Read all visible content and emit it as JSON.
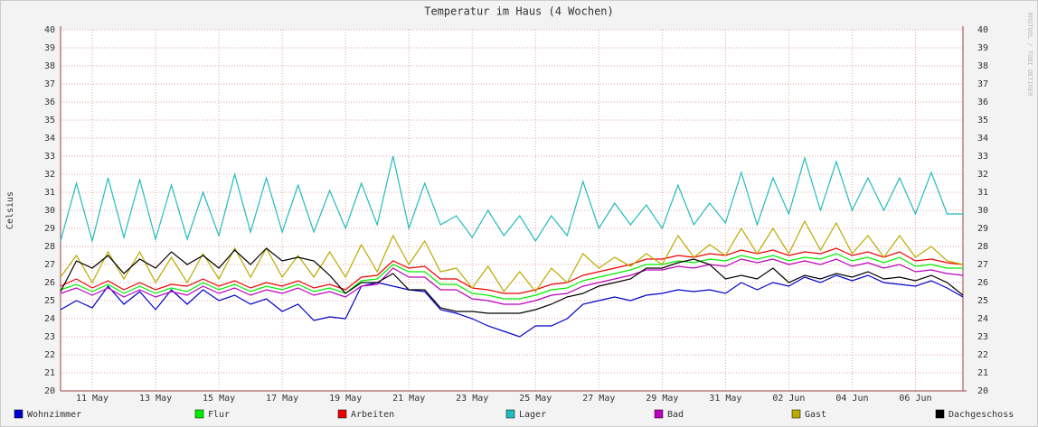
{
  "chart_data": {
    "type": "line",
    "title": "Temperatur im Haus (4 Wochen)",
    "y_label": "Celsius",
    "watermark": "RRDTOOL / TOBI OETIKER",
    "grid": true,
    "xlim": [
      0,
      28.5
    ],
    "ylim": [
      20,
      40
    ],
    "xticks": [
      {
        "value": 1,
        "label": "11 May"
      },
      {
        "value": 3,
        "label": "13 May"
      },
      {
        "value": 5,
        "label": "15 May"
      },
      {
        "value": 7,
        "label": "17 May"
      },
      {
        "value": 9,
        "label": "19 May"
      },
      {
        "value": 11,
        "label": "21 May"
      },
      {
        "value": 13,
        "label": "23 May"
      },
      {
        "value": 15,
        "label": "25 May"
      },
      {
        "value": 17,
        "label": "27 May"
      },
      {
        "value": 19,
        "label": "29 May"
      },
      {
        "value": 21,
        "label": "31 May"
      },
      {
        "value": 23,
        "label": "02 Jun"
      },
      {
        "value": 25,
        "label": "04 Jun"
      },
      {
        "value": 27,
        "label": "06 Jun"
      }
    ],
    "yticks": [
      20,
      21,
      22,
      23,
      24,
      25,
      26,
      27,
      28,
      29,
      30,
      31,
      32,
      33,
      34,
      35,
      36,
      37,
      38,
      39,
      40
    ],
    "x": [
      0,
      0.5,
      1,
      1.5,
      2,
      2.5,
      3,
      3.5,
      4,
      4.5,
      5,
      5.5,
      6,
      6.5,
      7,
      7.5,
      8,
      8.5,
      9,
      9.5,
      10,
      10.5,
      11,
      11.5,
      12,
      12.5,
      13,
      13.5,
      14,
      14.5,
      15,
      15.5,
      16,
      16.5,
      17,
      17.5,
      18,
      18.5,
      19,
      19.5,
      20,
      20.5,
      21,
      21.5,
      22,
      22.5,
      23,
      23.5,
      24,
      24.5,
      25,
      25.5,
      26,
      26.5,
      27,
      27.5,
      28,
      28.5
    ],
    "series": [
      {
        "name": "Wohnzimmer",
        "color": "#0000cc",
        "values": [
          24.5,
          25.0,
          24.6,
          25.8,
          24.8,
          25.5,
          24.5,
          25.6,
          24.8,
          25.6,
          25.0,
          25.3,
          24.8,
          25.1,
          24.4,
          24.8,
          23.9,
          24.1,
          24.0,
          25.8,
          26.0,
          25.8,
          25.6,
          25.5,
          24.5,
          24.3,
          24.0,
          23.6,
          23.3,
          23.0,
          23.6,
          23.6,
          24.0,
          24.8,
          25.0,
          25.2,
          25.0,
          25.3,
          25.4,
          25.6,
          25.5,
          25.6,
          25.4,
          26.0,
          25.6,
          26.0,
          25.8,
          26.3,
          26.0,
          26.4,
          26.1,
          26.4,
          26.0,
          25.9,
          25.8,
          26.1,
          25.7,
          25.2
        ]
      },
      {
        "name": "Flur",
        "color": "#00ee00",
        "values": [
          25.6,
          25.9,
          25.5,
          25.9,
          25.4,
          25.8,
          25.4,
          25.7,
          25.5,
          26.0,
          25.6,
          25.9,
          25.5,
          25.8,
          25.6,
          25.9,
          25.5,
          25.7,
          25.4,
          26.1,
          26.2,
          27.0,
          26.6,
          26.6,
          25.9,
          25.9,
          25.4,
          25.3,
          25.1,
          25.1,
          25.3,
          25.6,
          25.7,
          26.1,
          26.3,
          26.5,
          26.7,
          27.0,
          27.0,
          27.2,
          27.1,
          27.3,
          27.2,
          27.5,
          27.3,
          27.5,
          27.2,
          27.4,
          27.3,
          27.6,
          27.2,
          27.4,
          27.1,
          27.4,
          26.9,
          27.0,
          26.8,
          26.8
        ]
      },
      {
        "name": "Arbeiten",
        "color": "#ee0000",
        "values": [
          25.8,
          26.2,
          25.7,
          26.1,
          25.6,
          26.0,
          25.6,
          25.9,
          25.8,
          26.2,
          25.8,
          26.1,
          25.7,
          26.0,
          25.8,
          26.1,
          25.7,
          25.9,
          25.6,
          26.3,
          26.4,
          27.2,
          26.8,
          26.9,
          26.2,
          26.2,
          25.7,
          25.6,
          25.4,
          25.4,
          25.6,
          25.9,
          26.0,
          26.4,
          26.6,
          26.8,
          27.0,
          27.3,
          27.3,
          27.5,
          27.4,
          27.6,
          27.5,
          27.8,
          27.6,
          27.8,
          27.5,
          27.7,
          27.6,
          27.9,
          27.5,
          27.7,
          27.4,
          27.7,
          27.2,
          27.3,
          27.1,
          27.0
        ]
      },
      {
        "name": "Lager",
        "color": "#22bbbb",
        "values": [
          28.3,
          31.5,
          28.3,
          31.8,
          28.5,
          31.7,
          28.4,
          31.4,
          28.4,
          31.0,
          28.6,
          32.0,
          28.8,
          31.8,
          28.8,
          31.4,
          28.8,
          31.1,
          29.0,
          31.5,
          29.2,
          33.0,
          29.0,
          31.5,
          29.2,
          29.7,
          28.5,
          30.0,
          28.6,
          29.7,
          28.3,
          29.7,
          28.6,
          31.6,
          29.0,
          30.4,
          29.2,
          30.3,
          29.0,
          31.4,
          29.2,
          30.4,
          29.3,
          32.1,
          29.2,
          31.8,
          29.8,
          32.9,
          30.0,
          32.7,
          30.0,
          31.8,
          30.0,
          31.8,
          29.8,
          32.1,
          29.8,
          29.8
        ]
      },
      {
        "name": "Bad",
        "color": "#bb00bb",
        "values": [
          25.4,
          25.7,
          25.3,
          25.7,
          25.2,
          25.6,
          25.2,
          25.5,
          25.3,
          25.8,
          25.4,
          25.7,
          25.3,
          25.6,
          25.4,
          25.7,
          25.3,
          25.5,
          25.2,
          25.8,
          25.9,
          26.8,
          26.3,
          26.3,
          25.6,
          25.6,
          25.1,
          25.0,
          24.8,
          24.8,
          25.0,
          25.3,
          25.4,
          25.8,
          26.0,
          26.2,
          26.4,
          26.7,
          26.7,
          26.9,
          26.8,
          27.0,
          26.9,
          27.3,
          27.1,
          27.3,
          27.0,
          27.2,
          27.0,
          27.3,
          26.9,
          27.1,
          26.8,
          27.0,
          26.6,
          26.7,
          26.5,
          26.4
        ]
      },
      {
        "name": "Gast",
        "color": "#bbaa00",
        "values": [
          26.3,
          27.5,
          26.0,
          27.7,
          26.2,
          27.7,
          26.0,
          27.4,
          26.0,
          27.6,
          26.2,
          27.9,
          26.3,
          27.9,
          26.3,
          27.5,
          26.3,
          27.7,
          26.3,
          28.1,
          26.6,
          28.6,
          27.0,
          28.3,
          26.6,
          26.8,
          25.7,
          26.9,
          25.5,
          26.6,
          25.5,
          26.8,
          26.0,
          27.6,
          26.8,
          27.4,
          26.9,
          27.6,
          27.0,
          28.6,
          27.4,
          28.1,
          27.5,
          29.0,
          27.6,
          29.0,
          27.6,
          29.4,
          27.8,
          29.3,
          27.6,
          28.6,
          27.4,
          28.6,
          27.4,
          28.0,
          27.2,
          27.0
        ]
      },
      {
        "name": "Dachgeschoss",
        "color": "#000000",
        "values": [
          25.5,
          27.2,
          26.8,
          27.5,
          26.5,
          27.3,
          26.8,
          27.7,
          27.0,
          27.5,
          26.8,
          27.8,
          27.0,
          27.9,
          27.2,
          27.4,
          27.2,
          26.4,
          25.4,
          26.0,
          26.0,
          26.5,
          25.6,
          25.6,
          24.6,
          24.4,
          24.4,
          24.3,
          24.3,
          24.3,
          24.5,
          24.8,
          25.2,
          25.4,
          25.8,
          26.0,
          26.2,
          26.8,
          26.8,
          27.1,
          27.3,
          27.0,
          26.2,
          26.4,
          26.2,
          26.8,
          26.0,
          26.4,
          26.2,
          26.5,
          26.3,
          26.6,
          26.2,
          26.3,
          26.1,
          26.4,
          26.0,
          25.3
        ]
      }
    ]
  }
}
